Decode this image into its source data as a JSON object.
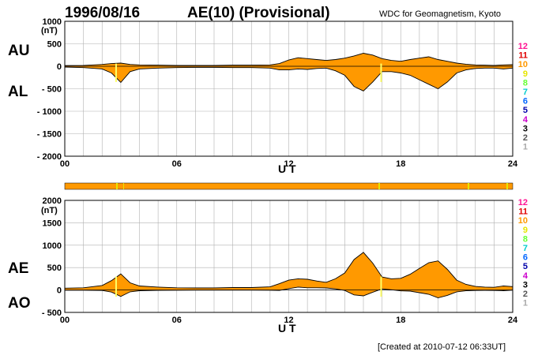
{
  "header": {
    "date": "1996/08/16",
    "title": "AE(10) (Provisional)",
    "source": "WDC for Geomagnetism, Kyoto"
  },
  "footer": {
    "created": "[Created at 2010-07-12 06:33UT]"
  },
  "legend": {
    "labels": [
      "12",
      "11",
      "10",
      "9",
      "8",
      "7",
      "6",
      "5",
      "4",
      "3",
      "2",
      "1"
    ],
    "colors": [
      "#ff1493",
      "#e00000",
      "#ff9900",
      "#e6e600",
      "#66ff33",
      "#00cccc",
      "#0066ff",
      "#0000aa",
      "#cc00cc",
      "#000000",
      "#555555",
      "#aaaaaa"
    ]
  },
  "chart_data": [
    {
      "type": "area",
      "panel": "upper",
      "xlabel": "U T",
      "unit": "(nT)",
      "xlim": [
        0,
        24
      ],
      "xticks": [
        "00",
        "06",
        "12",
        "18",
        "24"
      ],
      "ylim": [
        -2000,
        1000
      ],
      "yticks": [
        "1000",
        "500",
        "0",
        "- 500",
        "- 1000",
        "- 1500",
        "- 2000"
      ],
      "series_labels": [
        "AU",
        "AL"
      ],
      "fill_color": "#ff9900",
      "series": [
        {
          "name": "AU",
          "x": [
            0,
            1,
            2,
            2.5,
            3,
            3.5,
            4,
            5,
            6,
            7,
            8,
            9,
            10,
            11,
            11.5,
            12,
            12.5,
            13,
            13.5,
            14,
            14.5,
            15,
            15.5,
            16,
            16.5,
            17,
            17.5,
            18,
            18.5,
            19,
            19.5,
            20,
            20.5,
            21,
            21.5,
            22,
            22.5,
            23,
            23.5,
            24
          ],
          "values": [
            15,
            20,
            40,
            60,
            70,
            40,
            30,
            25,
            20,
            20,
            20,
            25,
            25,
            30,
            60,
            140,
            190,
            170,
            150,
            130,
            150,
            180,
            230,
            290,
            250,
            170,
            130,
            110,
            150,
            180,
            210,
            150,
            110,
            70,
            45,
            30,
            25,
            20,
            30,
            35
          ]
        },
        {
          "name": "AL",
          "x": [
            0,
            1,
            2,
            2.5,
            3,
            3.5,
            4,
            5,
            6,
            7,
            8,
            9,
            10,
            11,
            11.5,
            12,
            12.5,
            13,
            13.5,
            14,
            14.5,
            15,
            15.5,
            16,
            16.5,
            17,
            17.5,
            18,
            18.5,
            19,
            19.5,
            20,
            20.5,
            21,
            21.5,
            22,
            22.5,
            23,
            23.5,
            24
          ],
          "values": [
            -20,
            -30,
            -60,
            -150,
            -360,
            -120,
            -60,
            -40,
            -30,
            -25,
            -25,
            -30,
            -30,
            -40,
            -80,
            -80,
            -60,
            -70,
            -50,
            -40,
            -100,
            -200,
            -450,
            -550,
            -350,
            -120,
            -120,
            -150,
            -200,
            -300,
            -400,
            -500,
            -350,
            -150,
            -80,
            -50,
            -40,
            -40,
            -60,
            -40
          ]
        }
      ]
    },
    {
      "type": "area",
      "panel": "lower",
      "xlabel": "U T",
      "unit": "(nT)",
      "xlim": [
        0,
        24
      ],
      "xticks": [
        "00",
        "06",
        "12",
        "18",
        "24"
      ],
      "ylim": [
        -500,
        2000
      ],
      "yticks": [
        "2000",
        "1500",
        "1000",
        "500",
        "0",
        "- 500"
      ],
      "series_labels": [
        "AE",
        "AO"
      ],
      "fill_color": "#ff9900",
      "series": [
        {
          "name": "AE",
          "x": [
            0,
            1,
            2,
            2.5,
            3,
            3.5,
            4,
            5,
            6,
            7,
            8,
            9,
            10,
            11,
            11.5,
            12,
            12.5,
            13,
            13.5,
            14,
            14.5,
            15,
            15.5,
            16,
            16.5,
            17,
            17.5,
            18,
            18.5,
            19,
            19.5,
            20,
            20.5,
            21,
            21.5,
            22,
            22.5,
            23,
            23.5,
            24
          ],
          "values": [
            40,
            50,
            100,
            210,
            360,
            160,
            90,
            65,
            50,
            45,
            45,
            55,
            55,
            70,
            140,
            220,
            250,
            240,
            200,
            170,
            250,
            380,
            680,
            840,
            600,
            290,
            250,
            260,
            350,
            480,
            610,
            650,
            460,
            220,
            125,
            80,
            65,
            60,
            90,
            75
          ]
        },
        {
          "name": "AO",
          "x": [
            0,
            1,
            2,
            2.5,
            3,
            3.5,
            4,
            5,
            6,
            7,
            8,
            9,
            10,
            11,
            11.5,
            12,
            12.5,
            13,
            13.5,
            14,
            14.5,
            15,
            15.5,
            16,
            16.5,
            17,
            17.5,
            18,
            18.5,
            19,
            19.5,
            20,
            20.5,
            21,
            21.5,
            22,
            22.5,
            23,
            23.5,
            24
          ],
          "values": [
            -5,
            -5,
            -10,
            -45,
            -145,
            -40,
            -15,
            -8,
            -5,
            -3,
            -3,
            -3,
            -3,
            -5,
            -10,
            30,
            65,
            50,
            50,
            45,
            25,
            -10,
            -110,
            -130,
            -50,
            25,
            5,
            -20,
            -25,
            -60,
            -95,
            -175,
            -120,
            -40,
            -18,
            -10,
            -8,
            -10,
            -15,
            -3
          ]
        }
      ]
    }
  ]
}
